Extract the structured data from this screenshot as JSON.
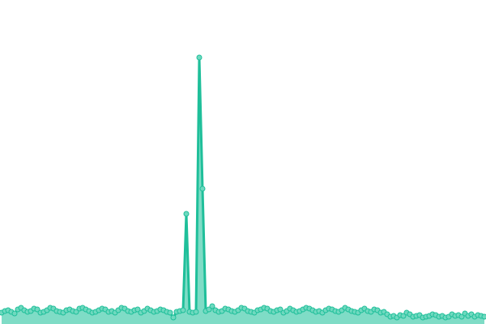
{
  "chart_data": {
    "type": "area",
    "color": "#1fbf9a",
    "fill": "#7fdcc6",
    "marker_fill": "#6fd9bf",
    "ylim": [
      0,
      400
    ],
    "values": [
      14,
      16,
      17,
      15,
      13,
      18,
      20,
      17,
      15,
      16,
      19,
      18,
      14,
      15,
      17,
      20,
      19,
      16,
      15,
      14,
      17,
      18,
      16,
      15,
      19,
      20,
      18,
      16,
      14,
      15,
      17,
      19,
      18,
      15,
      16,
      14,
      17,
      20,
      19,
      16,
      15,
      17,
      18,
      14,
      16,
      19,
      17,
      15,
      16,
      18,
      17,
      15,
      14,
      8,
      15,
      16,
      17,
      136,
      15,
      14,
      15,
      329,
      167,
      16,
      18,
      22,
      17,
      15,
      16,
      19,
      18,
      16,
      15,
      17,
      20,
      19,
      16,
      15,
      14,
      17,
      18,
      20,
      19,
      16,
      15,
      17,
      18,
      14,
      16,
      19,
      17,
      15,
      16,
      18,
      20,
      19,
      17,
      15,
      16,
      14,
      17,
      19,
      18,
      16,
      15,
      17,
      20,
      18,
      16,
      15,
      14,
      17,
      19,
      16,
      15,
      18,
      17,
      14,
      15,
      12,
      9,
      10,
      8,
      11,
      10,
      14,
      12,
      9,
      10,
      11,
      8,
      9,
      10,
      12,
      11,
      9,
      10,
      8,
      9,
      12,
      10,
      11,
      9,
      13,
      10,
      12,
      9,
      11,
      10,
      9
    ]
  }
}
